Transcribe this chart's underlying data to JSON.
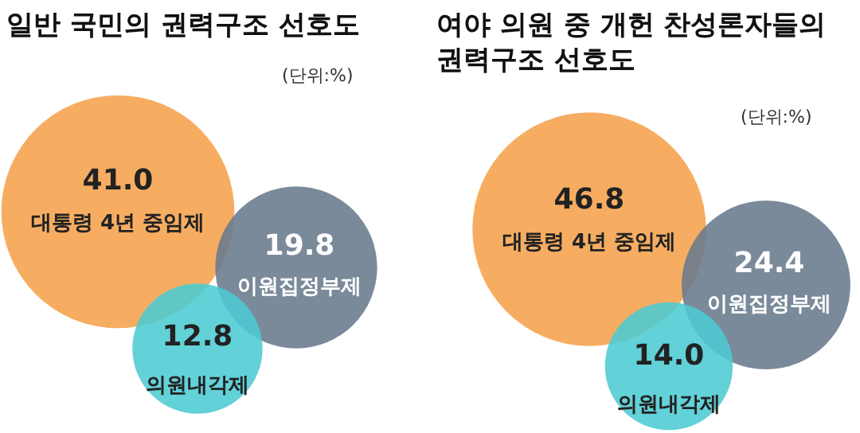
{
  "chart_data": [
    {
      "type": "other",
      "title": "일반 국민의 권력구조 선호도",
      "categories": [
        "대통령 4년 중임제",
        "이원집정부제",
        "의원내각제"
      ],
      "values": [
        41.0,
        19.8,
        12.8
      ],
      "value_labels": [
        "41.0",
        "19.8",
        "12.8"
      ],
      "colors": [
        "#f5a24c",
        "#687a8c",
        "#4ccbd3"
      ],
      "annotations": [
        "(단위:%)"
      ]
    },
    {
      "type": "other",
      "title": "여야 의원 중 개헌 찬성론자들의\n권력구조 선호도",
      "categories": [
        "대통령 4년 중임제",
        "이원집정부제",
        "의원내각제"
      ],
      "values": [
        46.8,
        24.4,
        14.0
      ],
      "value_labels": [
        "46.8",
        "24.4",
        "14.0"
      ],
      "colors": [
        "#f5a24c",
        "#687a8c",
        "#4ccbd3"
      ],
      "annotations": [
        "(단위:%)"
      ]
    }
  ]
}
